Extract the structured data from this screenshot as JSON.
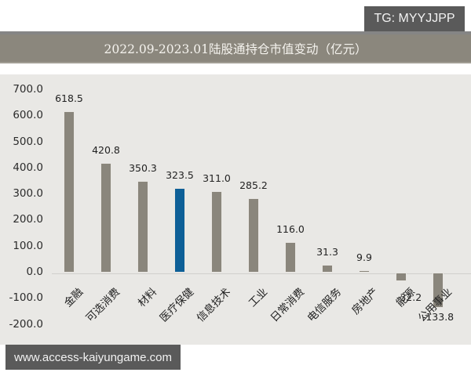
{
  "watermark_top": "TG: MYYJJPP",
  "watermark_bottom": "www.access-kaiyungame.com",
  "title": "2022.09-2023.01陆股通持仓市值变动（亿元）",
  "colors": {
    "bar_default": "#8a867c",
    "bar_highlight": "#0d5f97",
    "title_band": "#8b877d",
    "panel_bg": "#e9e8e5"
  },
  "chart_data": {
    "type": "bar",
    "title": "2022.09-2023.01陆股通持仓市值变动（亿元）",
    "xlabel": "",
    "ylabel": "",
    "ylim": [
      -200,
      700
    ],
    "yticks": [
      "700.0",
      "600.0",
      "500.0",
      "400.0",
      "300.0",
      "200.0",
      "100.0",
      "0.0",
      "-100.0",
      "-200.0"
    ],
    "grid": false,
    "legend": null,
    "categories": [
      "金融",
      "可选消费",
      "材料",
      "医疗保健",
      "信息技术",
      "工业",
      "日常消费",
      "电信服务",
      "房地产",
      "能源",
      "公用事业"
    ],
    "values": [
      618.5,
      420.8,
      350.3,
      323.5,
      311.0,
      285.2,
      116.0,
      31.3,
      9.9,
      -32.2,
      -133.8
    ],
    "value_labels": [
      "618.5",
      "420.8",
      "350.3",
      "323.5",
      "311.0",
      "285.2",
      "116.0",
      "31.3",
      "9.9",
      "-32.2",
      "-133.8"
    ],
    "highlighted_category": "医疗保健"
  }
}
